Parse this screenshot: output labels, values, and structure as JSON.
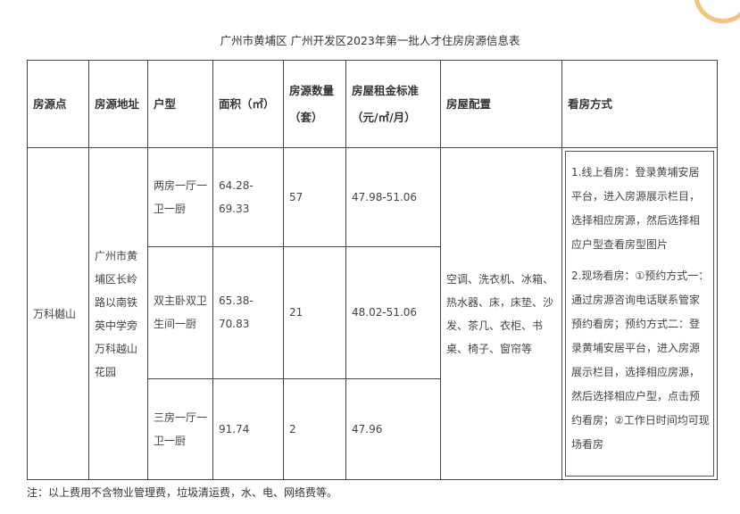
{
  "title": "广州市黄埔区 广州开发区2023年第一批人才住房房源信息表",
  "headers": [
    "房源点",
    "房源地址",
    "户型",
    "面积（㎡）",
    "房源数量（套）",
    "房屋租金标准（元/㎡/月）",
    "房屋配置",
    "看房方式"
  ],
  "source": "万科樾山",
  "address": "广州市黄埔区长岭路以南铁英中学旁万科越山花园",
  "rows": [
    {
      "type": "两房一厅一卫一厨",
      "area": "64.28-69.33",
      "count": "57",
      "rent": "47.98-51.06"
    },
    {
      "type": "双主卧双卫生间一厨",
      "area": "65.38-70.83",
      "count": "21",
      "rent": "48.02-51.06"
    },
    {
      "type": "三房一厅一卫一厨",
      "area": "91.74",
      "count": "2",
      "rent": "47.96"
    }
  ],
  "config": "空调、洗衣机、冰箱、热水器、床，床垫、沙发、茶几、衣柜、书桌、椅子、窗帘等",
  "viewing": [
    "1.线上看房：登录黄埔安居平台，进入房源展示栏目，选择相应房源，然后选择相应户型查看房型图片",
    "2.现场看房：①预约方式一：通过房源咨询电话联系管家预约看房；预约方式二：登录黄埔安居平台，进入房源展示栏目，选择相应房源，然后选择相应户型，点击预约看房；②工作日时间均可现场看房"
  ],
  "note": "注：以上费用不含物业管理费，垃圾清运费，水、电、网络费等。",
  "colors": {
    "decoration": "#f7c27d"
  }
}
